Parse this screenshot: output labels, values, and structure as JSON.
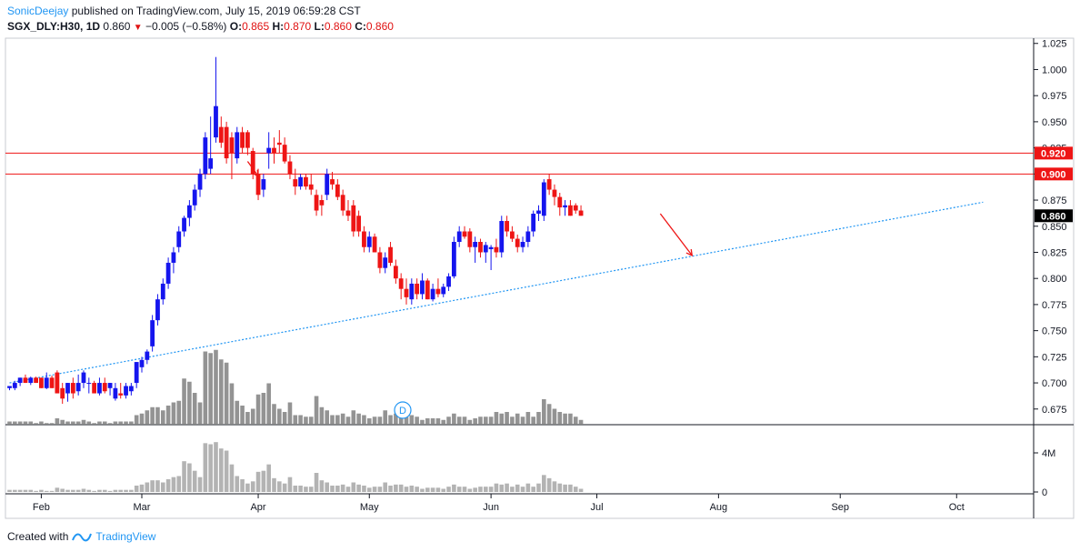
{
  "header": {
    "author": "SonicDeejay",
    "published_text": "published on TradingView.com, July 15, 2019 06:59:28 CST"
  },
  "symbol": {
    "name": "SGX_DLY:H30, 1D",
    "last": "0.860",
    "change": "−0.005 (−0.58%)",
    "o_label": "O:",
    "o": "0.865",
    "h_label": "H:",
    "h": "0.870",
    "l_label": "L:",
    "l": "0.860",
    "c_label": "C:",
    "c": "0.860"
  },
  "footer": {
    "created_with": "Created with",
    "brand": "TradingView"
  },
  "colors": {
    "up": "#1515ee",
    "down": "#ee1515",
    "volume": "#808080",
    "trendline": "#2196f3",
    "hline": "#ee1515",
    "axis": "#131722"
  },
  "chart_data": {
    "type": "candlestick",
    "y_ticks": [
      "0.675",
      "0.700",
      "0.725",
      "0.750",
      "0.775",
      "0.800",
      "0.825",
      "0.850",
      "0.875",
      "0.900",
      "0.925",
      "0.950",
      "0.975",
      "1.000",
      "1.025"
    ],
    "ylim": [
      0.66,
      1.03
    ],
    "x_labels": [
      "Feb",
      "Mar",
      "Apr",
      "May",
      "Jun",
      "Jul",
      "Aug",
      "Sep",
      "Oct"
    ],
    "horizontal_lines": [
      0.92,
      0.9
    ],
    "price_labels": [
      {
        "value": 0.92,
        "text": "0.920",
        "style": "red"
      },
      {
        "value": 0.9,
        "text": "0.900",
        "style": "red"
      },
      {
        "value": 0.86,
        "text": "0.860",
        "style": "black"
      }
    ],
    "trendline": {
      "from": [
        0,
        0.7
      ],
      "to": [
        184,
        0.873
      ]
    },
    "arrows": [
      {
        "from": [
          45,
          0.912
        ],
        "to": [
          47,
          0.898
        ]
      },
      {
        "from": [
          123,
          0.862
        ],
        "to": [
          129,
          0.822
        ]
      }
    ],
    "volume_axis": [
      "4M",
      "0"
    ],
    "volume_max": 6.0,
    "dividend_marker": "D",
    "candles": [
      [
        0.695,
        0.697,
        0.693,
        0.697,
        0.2
      ],
      [
        0.695,
        0.702,
        0.693,
        0.7,
        0.2
      ],
      [
        0.7,
        0.705,
        0.697,
        0.705,
        0.2
      ],
      [
        0.705,
        0.708,
        0.7,
        0.7,
        0.2
      ],
      [
        0.7,
        0.706,
        0.698,
        0.705,
        0.2
      ],
      [
        0.705,
        0.706,
        0.7,
        0.7,
        0.1
      ],
      [
        0.705,
        0.705,
        0.695,
        0.695,
        0.2
      ],
      [
        0.695,
        0.71,
        0.694,
        0.705,
        0.1
      ],
      [
        0.705,
        0.707,
        0.695,
        0.695,
        0.1
      ],
      [
        0.71,
        0.712,
        0.69,
        0.69,
        0.4
      ],
      [
        0.695,
        0.7,
        0.68,
        0.685,
        0.3
      ],
      [
        0.69,
        0.7,
        0.682,
        0.7,
        0.2
      ],
      [
        0.7,
        0.705,
        0.685,
        0.69,
        0.2
      ],
      [
        0.692,
        0.708,
        0.688,
        0.7,
        0.2
      ],
      [
        0.7,
        0.712,
        0.695,
        0.71,
        0.3
      ],
      [
        0.7,
        0.705,
        0.69,
        0.7,
        0.2
      ],
      [
        0.7,
        0.702,
        0.69,
        0.69,
        0.1
      ],
      [
        0.69,
        0.705,
        0.688,
        0.7,
        0.2
      ],
      [
        0.7,
        0.705,
        0.69,
        0.692,
        0.2
      ],
      [
        0.695,
        0.7,
        0.688,
        0.7,
        0.1
      ],
      [
        0.685,
        0.7,
        0.683,
        0.695,
        0.2
      ],
      [
        0.69,
        0.7,
        0.685,
        0.688,
        0.2
      ],
      [
        0.688,
        0.7,
        0.685,
        0.697,
        0.2
      ],
      [
        0.692,
        0.7,
        0.688,
        0.697,
        0.2
      ],
      [
        0.7,
        0.72,
        0.695,
        0.72,
        0.6
      ],
      [
        0.715,
        0.725,
        0.71,
        0.722,
        0.7
      ],
      [
        0.722,
        0.732,
        0.718,
        0.73,
        0.9
      ],
      [
        0.735,
        0.765,
        0.73,
        0.76,
        1.1
      ],
      [
        0.76,
        0.785,
        0.755,
        0.78,
        1.1
      ],
      [
        0.78,
        0.8,
        0.775,
        0.795,
        0.9
      ],
      [
        0.795,
        0.82,
        0.79,
        0.815,
        1.2
      ],
      [
        0.815,
        0.83,
        0.805,
        0.825,
        1.4
      ],
      [
        0.83,
        0.85,
        0.825,
        0.845,
        1.5
      ],
      [
        0.845,
        0.86,
        0.84,
        0.858,
        2.9
      ],
      [
        0.858,
        0.875,
        0.85,
        0.87,
        2.7
      ],
      [
        0.87,
        0.89,
        0.865,
        0.885,
        2.0
      ],
      [
        0.885,
        0.905,
        0.878,
        0.9,
        1.4
      ],
      [
        0.9,
        0.94,
        0.895,
        0.935,
        4.6
      ],
      [
        0.905,
        0.955,
        0.9,
        0.915,
        4.5
      ],
      [
        0.935,
        1.012,
        0.93,
        0.965,
        4.7
      ],
      [
        0.945,
        0.955,
        0.925,
        0.93,
        4.1
      ],
      [
        0.945,
        0.95,
        0.91,
        0.915,
        3.9
      ],
      [
        0.935,
        0.94,
        0.895,
        0.92,
        2.6
      ],
      [
        0.915,
        0.945,
        0.91,
        0.94,
        1.5
      ],
      [
        0.94,
        0.945,
        0.92,
        0.925,
        1.2
      ],
      [
        0.94,
        0.942,
        0.918,
        0.925,
        0.8
      ],
      [
        0.922,
        0.925,
        0.895,
        0.9,
        1.0
      ],
      [
        0.9,
        0.905,
        0.875,
        0.88,
        1.9
      ],
      [
        0.885,
        0.9,
        0.878,
        0.895,
        2.0
      ],
      [
        0.92,
        0.94,
        0.905,
        0.925,
        2.6
      ],
      [
        0.925,
        0.935,
        0.91,
        0.92,
        1.3
      ],
      [
        0.93,
        0.942,
        0.92,
        0.928,
        1.0
      ],
      [
        0.928,
        0.935,
        0.91,
        0.912,
        0.8
      ],
      [
        0.912,
        0.918,
        0.895,
        0.9,
        1.4
      ],
      [
        0.895,
        0.905,
        0.88,
        0.888,
        0.6
      ],
      [
        0.888,
        0.9,
        0.885,
        0.897,
        0.6
      ],
      [
        0.897,
        0.9,
        0.885,
        0.888,
        0.5
      ],
      [
        0.89,
        0.9,
        0.88,
        0.885,
        0.5
      ],
      [
        0.88,
        0.885,
        0.86,
        0.865,
        1.8
      ],
      [
        0.875,
        0.88,
        0.86,
        0.87,
        1.1
      ],
      [
        0.88,
        0.905,
        0.875,
        0.9,
        0.9
      ],
      [
        0.895,
        0.902,
        0.885,
        0.89,
        0.6
      ],
      [
        0.89,
        0.895,
        0.875,
        0.878,
        0.6
      ],
      [
        0.88,
        0.885,
        0.86,
        0.865,
        0.7
      ],
      [
        0.865,
        0.875,
        0.855,
        0.86,
        0.5
      ],
      [
        0.87,
        0.875,
        0.84,
        0.845,
        0.9
      ],
      [
        0.86,
        0.865,
        0.84,
        0.845,
        0.7
      ],
      [
        0.845,
        0.85,
        0.825,
        0.83,
        0.6
      ],
      [
        0.83,
        0.845,
        0.825,
        0.84,
        0.4
      ],
      [
        0.84,
        0.843,
        0.825,
        0.825,
        0.5
      ],
      [
        0.825,
        0.83,
        0.805,
        0.81,
        0.5
      ],
      [
        0.81,
        0.825,
        0.805,
        0.82,
        0.9
      ],
      [
        0.83,
        0.835,
        0.812,
        0.815,
        0.6
      ],
      [
        0.812,
        0.818,
        0.795,
        0.8,
        0.7
      ],
      [
        0.8,
        0.805,
        0.78,
        0.79,
        0.7
      ],
      [
        0.79,
        0.8,
        0.775,
        0.782,
        0.5
      ],
      [
        0.78,
        0.8,
        0.775,
        0.795,
        0.6
      ],
      [
        0.795,
        0.8,
        0.78,
        0.785,
        0.5
      ],
      [
        0.785,
        0.805,
        0.78,
        0.798,
        0.3
      ],
      [
        0.798,
        0.8,
        0.78,
        0.78,
        0.4
      ],
      [
        0.78,
        0.795,
        0.778,
        0.79,
        0.4
      ],
      [
        0.79,
        0.8,
        0.782,
        0.785,
        0.4
      ],
      [
        0.785,
        0.795,
        0.782,
        0.792,
        0.3
      ],
      [
        0.792,
        0.805,
        0.788,
        0.802,
        0.5
      ],
      [
        0.802,
        0.84,
        0.8,
        0.835,
        0.7
      ],
      [
        0.835,
        0.85,
        0.83,
        0.845,
        0.5
      ],
      [
        0.845,
        0.85,
        0.838,
        0.84,
        0.5
      ],
      [
        0.845,
        0.848,
        0.825,
        0.83,
        0.3
      ],
      [
        0.83,
        0.84,
        0.815,
        0.835,
        0.4
      ],
      [
        0.835,
        0.838,
        0.82,
        0.825,
        0.5
      ],
      [
        0.825,
        0.835,
        0.815,
        0.832,
        0.5
      ],
      [
        0.828,
        0.832,
        0.808,
        0.83,
        0.5
      ],
      [
        0.83,
        0.838,
        0.82,
        0.825,
        0.8
      ],
      [
        0.825,
        0.86,
        0.82,
        0.855,
        0.7
      ],
      [
        0.855,
        0.86,
        0.84,
        0.845,
        0.8
      ],
      [
        0.845,
        0.85,
        0.835,
        0.838,
        0.5
      ],
      [
        0.838,
        0.842,
        0.825,
        0.83,
        0.7
      ],
      [
        0.83,
        0.84,
        0.825,
        0.835,
        0.5
      ],
      [
        0.835,
        0.85,
        0.83,
        0.845,
        0.8
      ],
      [
        0.845,
        0.865,
        0.84,
        0.862,
        0.5
      ],
      [
        0.862,
        0.87,
        0.855,
        0.865,
        0.8
      ],
      [
        0.86,
        0.895,
        0.855,
        0.892,
        1.6
      ],
      [
        0.895,
        0.9,
        0.88,
        0.885,
        1.3
      ],
      [
        0.885,
        0.89,
        0.87,
        0.878,
        1.0
      ],
      [
        0.878,
        0.882,
        0.86,
        0.868,
        0.8
      ],
      [
        0.868,
        0.875,
        0.86,
        0.87,
        0.7
      ],
      [
        0.87,
        0.875,
        0.86,
        0.86,
        0.7
      ],
      [
        0.87,
        0.872,
        0.862,
        0.865,
        0.5
      ],
      [
        0.865,
        0.87,
        0.86,
        0.86,
        0.3
      ]
    ]
  }
}
